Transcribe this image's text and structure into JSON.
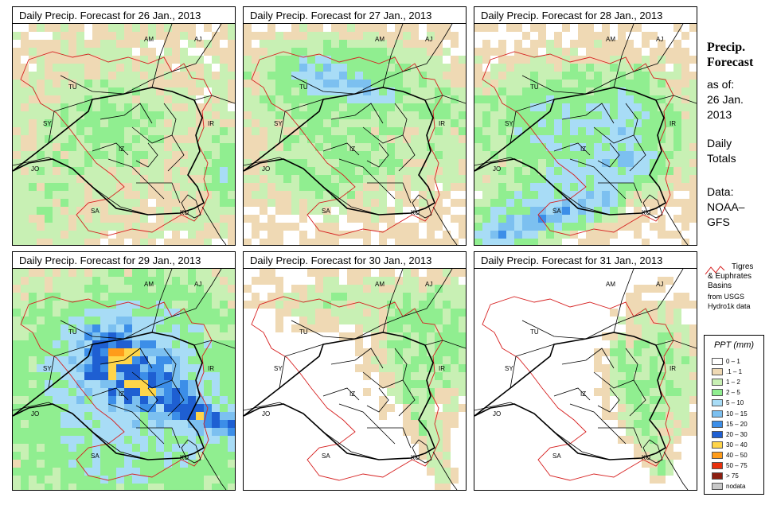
{
  "panels": [
    {
      "title": "Daily Precip. Forecast for  26 Jan., 2013"
    },
    {
      "title": "Daily Precip. Forecast for  27 Jan., 2013"
    },
    {
      "title": "Daily Precip. Forecast for  28 Jan., 2013"
    },
    {
      "title": "Daily Precip. Forecast for  29 Jan., 2013"
    },
    {
      "title": "Daily Precip. Forecast for  30 Jan., 2013"
    },
    {
      "title": "Daily Precip. Forecast for  31 Jan., 2013"
    }
  ],
  "country_labels": [
    "AM",
    "AJ",
    "TU",
    "SY",
    "IR",
    "IZ",
    "JO",
    "SA",
    "KU"
  ],
  "sidebar": {
    "title_line1": "Precip.",
    "title_line2": "Forecast",
    "asof_line1": "as of:",
    "asof_line2": "26 Jan.",
    "asof_line3": "2013",
    "totals_line1": "Daily",
    "totals_line2": "Totals",
    "data_line1": "Data:",
    "data_line2": "NOAA–",
    "data_line3": "GFS"
  },
  "basin_note": {
    "line1": "Tigres",
    "line2": "& Euphrates",
    "line3": "Basins",
    "line4": "from USGS",
    "line5": "Hydro1k data",
    "color": "#d62020"
  },
  "legend": {
    "title": "PPT (mm)",
    "items": [
      {
        "label": "0 – 1",
        "color": "#ffffff"
      },
      {
        "label": ".1 – 1",
        "color": "#efd9b4"
      },
      {
        "label": "1 – 2",
        "color": "#c8f0b4"
      },
      {
        "label": "2 – 5",
        "color": "#90ee90"
      },
      {
        "label": "5 – 10",
        "color": "#a8dcf6"
      },
      {
        "label": "10 – 15",
        "color": "#7cc0f0"
      },
      {
        "label": "15 – 20",
        "color": "#3c8ee8"
      },
      {
        "label": "20 – 30",
        "color": "#1e5fd2"
      },
      {
        "label": "30 – 40",
        "color": "#ffd54a"
      },
      {
        "label": "40 – 50",
        "color": "#ff9c1a"
      },
      {
        "label": "50 – 75",
        "color": "#e8300c"
      },
      {
        "label": "> 75",
        "color": "#8c1e10"
      },
      {
        "label": "nodata",
        "color": "#c8c8c8"
      }
    ]
  }
}
